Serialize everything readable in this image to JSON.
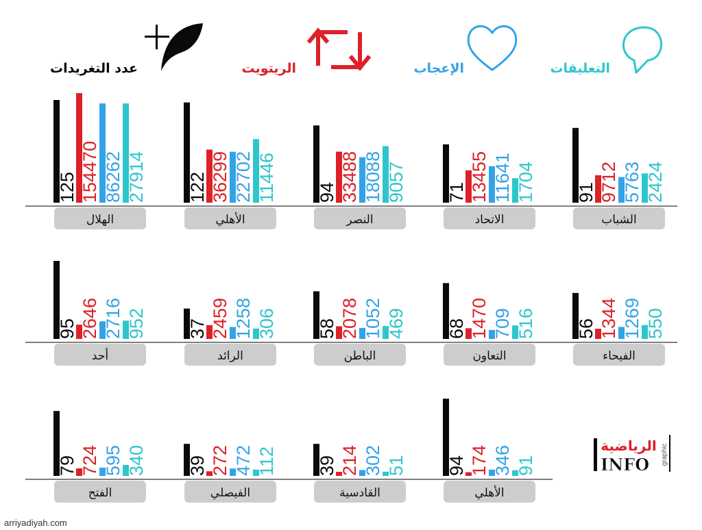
{
  "legend": [
    {
      "key": "tweets",
      "label": "عدد التغريدات",
      "color": "#0a0a0a",
      "icon": "quill-plus-icon"
    },
    {
      "key": "retweets",
      "label": "الريتويت",
      "color": "#dc2128",
      "icon": "retweet-icon"
    },
    {
      "key": "likes",
      "label": "الإعجاب",
      "color": "#33a3e8",
      "icon": "heart-icon"
    },
    {
      "key": "comments",
      "label": "التعليقات",
      "color": "#2ec6cc",
      "icon": "speech-bubble-icon"
    }
  ],
  "logo": {
    "brand": "الرياضية",
    "sub": "INFO",
    "tag": "graphic"
  },
  "footer": {
    "url": "arriyadiyah.com"
  },
  "chart_data": {
    "type": "bar",
    "series_names": [
      "tweets",
      "retweets",
      "likes",
      "comments"
    ],
    "teams": [
      {
        "name": "الهلال",
        "values": [
          125,
          154470,
          86262,
          27914
        ]
      },
      {
        "name": "الأهلي",
        "values": [
          122,
          36299,
          22702,
          11446
        ]
      },
      {
        "name": "النصر",
        "values": [
          94,
          33488,
          18088,
          9057
        ]
      },
      {
        "name": "الاتحاد",
        "values": [
          71,
          13455,
          11641,
          1704
        ]
      },
      {
        "name": "الشباب",
        "values": [
          91,
          9712,
          5763,
          2424
        ]
      },
      {
        "name": "أحد",
        "values": [
          95,
          2646,
          2716,
          952
        ]
      },
      {
        "name": "الرائد",
        "values": [
          37,
          2459,
          1258,
          306
        ]
      },
      {
        "name": "الباطن",
        "values": [
          58,
          2078,
          1052,
          469
        ]
      },
      {
        "name": "التعاون",
        "values": [
          68,
          1470,
          709,
          516
        ]
      },
      {
        "name": "الفيحاء",
        "values": [
          56,
          1344,
          1269,
          550
        ]
      },
      {
        "name": "الفتح",
        "values": [
          79,
          724,
          595,
          340
        ]
      },
      {
        "name": "الفيصلي",
        "values": [
          39,
          272,
          472,
          112
        ]
      },
      {
        "name": "القادسية",
        "values": [
          39,
          214,
          302,
          51
        ]
      },
      {
        "name": "الأهلي",
        "values": [
          94,
          174,
          346,
          91
        ]
      }
    ]
  }
}
